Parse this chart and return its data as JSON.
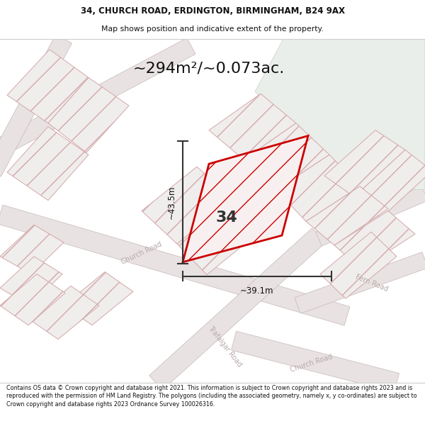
{
  "title_line1": "34, CHURCH ROAD, ERDINGTON, BIRMINGHAM, B24 9AX",
  "title_line2": "Map shows position and indicative extent of the property.",
  "area_text": "~294m²/~0.073ac.",
  "dim_height": "~43.5m",
  "dim_width": "~39.1m",
  "label_number": "34",
  "footer_text": "Contains OS data © Crown copyright and database right 2021. This information is subject to Crown copyright and database rights 2023 and is reproduced with the permission of HM Land Registry. The polygons (including the associated geometry, namely x, y co-ordinates) are subject to Crown copyright and database rights 2023 Ordnance Survey 100026316.",
  "bg_color": "#f2eeee",
  "road_fill": "#e8e2e2",
  "road_edge": "#c8b8b8",
  "parcel_fill": "#f0eded",
  "parcel_edge": "#d4a8a8",
  "green_fill": "#eaeeea",
  "green_edge": "#c8d0c8",
  "prop_edge": "#cc0000",
  "prop_fill": "#f8f0f0",
  "road_label": "#b8aaaa",
  "measure_color": "#333333",
  "text_dark": "#111111",
  "text_num": "#333333",
  "header_sep": "#cccccc",
  "footer_sep": "#cccccc"
}
